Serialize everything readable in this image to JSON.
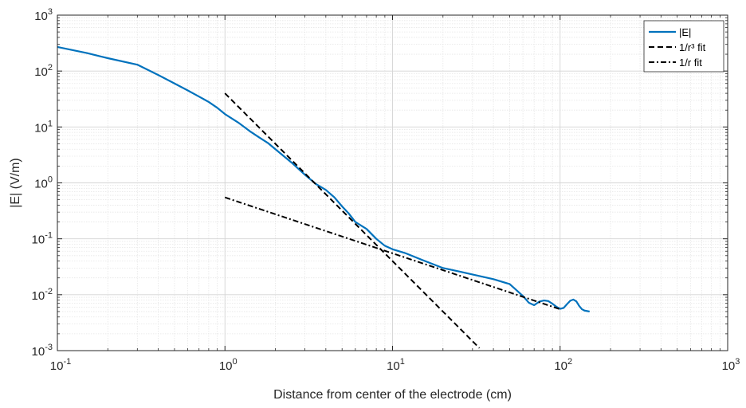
{
  "chart_data": {
    "type": "line",
    "title": "",
    "xlabel": "Distance from center of the electrode (cm)",
    "ylabel": "|E| (V/m)",
    "xscale": "log",
    "yscale": "log",
    "xlim": [
      0.1,
      1000
    ],
    "ylim": [
      0.001,
      1000
    ],
    "x_ticks": [
      {
        "base": "10",
        "exp": "-1",
        "value": 0.1
      },
      {
        "base": "10",
        "exp": "0",
        "value": 1
      },
      {
        "base": "10",
        "exp": "1",
        "value": 10
      },
      {
        "base": "10",
        "exp": "2",
        "value": 100
      },
      {
        "base": "10",
        "exp": "3",
        "value": 1000
      }
    ],
    "y_ticks": [
      {
        "base": "10",
        "exp": "-3",
        "value": 0.001
      },
      {
        "base": "10",
        "exp": "-2",
        "value": 0.01
      },
      {
        "base": "10",
        "exp": "-1",
        "value": 0.1
      },
      {
        "base": "10",
        "exp": "0",
        "value": 1
      },
      {
        "base": "10",
        "exp": "1",
        "value": 10
      },
      {
        "base": "10",
        "exp": "2",
        "value": 100
      },
      {
        "base": "10",
        "exp": "3",
        "value": 1000
      }
    ],
    "grid": true,
    "minor_grid": true,
    "legend_position": "top-right",
    "series": [
      {
        "name": "|E|",
        "color": "#0072BD",
        "style": "solid",
        "x": [
          0.1,
          0.15,
          0.2,
          0.3,
          0.4,
          0.5,
          0.6,
          0.7,
          0.8,
          0.9,
          1.0,
          1.2,
          1.4,
          1.6,
          1.8,
          2.0,
          2.5,
          3.0,
          3.5,
          4.0,
          4.5,
          5.0,
          5.5,
          6.0,
          7.0,
          8.0,
          9.0,
          10,
          12,
          15,
          20,
          25,
          30,
          40,
          50,
          60,
          65,
          70,
          75,
          80,
          85,
          90,
          95,
          100,
          105,
          110,
          115,
          120,
          125,
          130,
          135,
          140,
          150
        ],
        "y": [
          270,
          210,
          170,
          130,
          85,
          60,
          45,
          35,
          28,
          22,
          17,
          12,
          8.5,
          6.5,
          5.2,
          4.0,
          2.3,
          1.4,
          0.95,
          0.75,
          0.55,
          0.38,
          0.28,
          0.2,
          0.15,
          0.1,
          0.075,
          0.065,
          0.055,
          0.042,
          0.03,
          0.026,
          0.023,
          0.019,
          0.0155,
          0.0095,
          0.0072,
          0.0065,
          0.0075,
          0.0079,
          0.0077,
          0.0069,
          0.0061,
          0.0056,
          0.0058,
          0.0068,
          0.0078,
          0.0082,
          0.0076,
          0.0063,
          0.0055,
          0.0052,
          0.005
        ]
      },
      {
        "name": "1/r³ fit",
        "color": "#000000",
        "style": "dashed",
        "x": [
          1,
          33
        ],
        "y": [
          40,
          0.00111
        ]
      },
      {
        "name": "1/r fit",
        "color": "#000000",
        "style": "dashdot",
        "x": [
          1,
          100
        ],
        "y": [
          0.55,
          0.0055
        ]
      }
    ]
  }
}
